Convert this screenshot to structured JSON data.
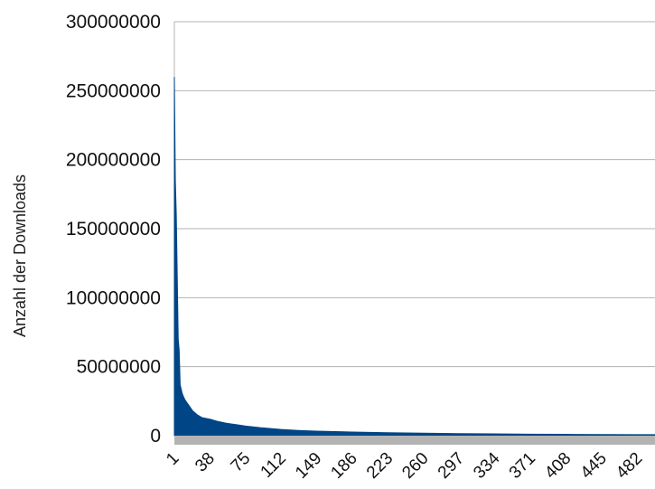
{
  "chart_data": {
    "type": "area",
    "ylabel": "Anzahl der Downloads",
    "xlabel": "",
    "ylim": [
      0,
      300000000
    ],
    "y_ticks": [
      "0",
      "50000000",
      "100000000",
      "150000000",
      "200000000",
      "250000000",
      "300000000"
    ],
    "y_tick_values": [
      0,
      50000000,
      100000000,
      150000000,
      200000000,
      250000000,
      300000000
    ],
    "x_tick_labels": [
      "1",
      "38",
      "75",
      "112",
      "149",
      "186",
      "223",
      "260",
      "297",
      "334",
      "371",
      "408",
      "445",
      "482"
    ],
    "x_tick_values": [
      1,
      38,
      75,
      112,
      149,
      186,
      223,
      260,
      297,
      334,
      371,
      408,
      445,
      482
    ],
    "x_range": [
      1,
      500
    ],
    "grid": true,
    "legend": "none",
    "colors": {
      "series": "#004586",
      "grid": "#b3b3b3",
      "floor": "#b3b3b3"
    },
    "series": [
      {
        "x": [
          1,
          2,
          3,
          4,
          5,
          6,
          7,
          8,
          9,
          10,
          12,
          14,
          16,
          20,
          25,
          30,
          38,
          45,
          55,
          65,
          75,
          90,
          112,
          130,
          149,
          186,
          223,
          260,
          297,
          334,
          371,
          408,
          445,
          482,
          500
        ],
        "values": [
          260000000,
          185000000,
          160000000,
          115000000,
          70000000,
          62000000,
          37000000,
          34000000,
          31000000,
          29000000,
          26000000,
          24000000,
          22000000,
          18000000,
          15000000,
          13000000,
          12000000,
          10500000,
          9000000,
          8000000,
          7000000,
          5800000,
          4500000,
          3800000,
          3300000,
          2600000,
          2100000,
          1800000,
          1500000,
          1300000,
          1100000,
          950000,
          850000,
          750000,
          700000
        ]
      }
    ]
  }
}
